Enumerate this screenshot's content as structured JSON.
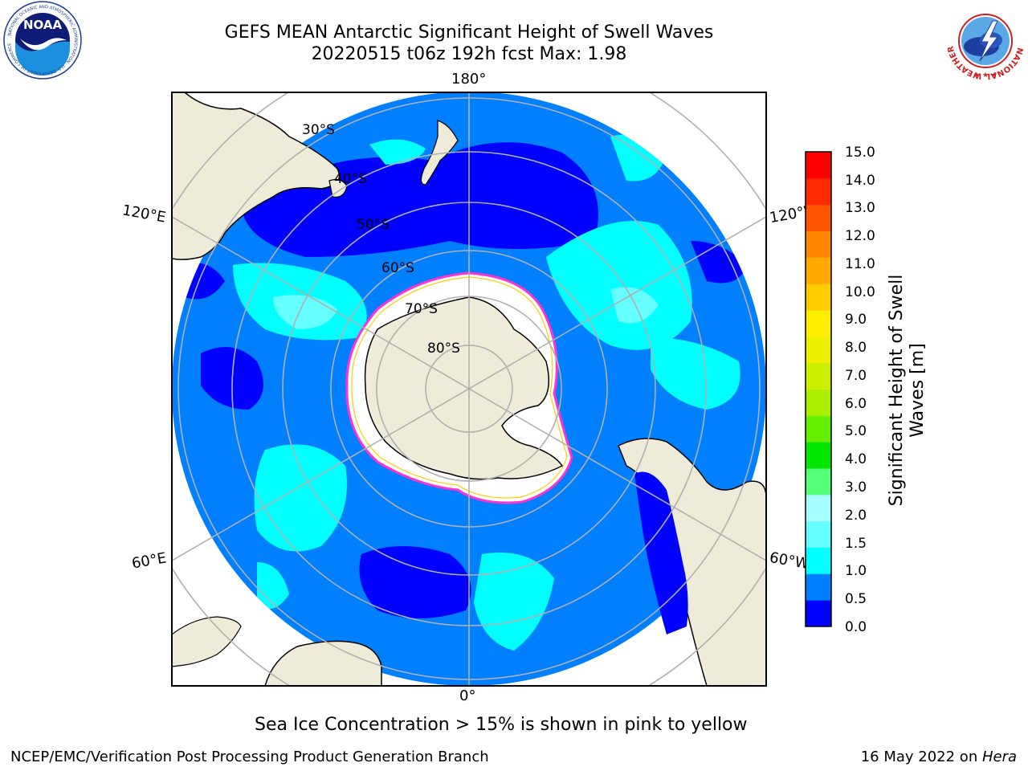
{
  "header": {
    "title_line1": "GEFS MEAN Antarctic Significant Height of Swell Waves",
    "title_line2": "20220515 t06z 192h fcst   Max: 1.98"
  },
  "logos": {
    "noaa_text": "NOAA",
    "noaa_ring_text": "NATIONAL OCEANIC AND ATMOSPHERIC ADMINISTRATION · U.S. DEPARTMENT OF COMMERCE",
    "nws_ring_text": "NATIONAL WEATHER SERVICE"
  },
  "map": {
    "projection": "south polar stereographic",
    "lon_labels": {
      "top": "180°",
      "bottom": "0°",
      "left_upper": "120°E",
      "left_lower": "60°E",
      "right_upper": "120°W",
      "right_lower": "60°W"
    },
    "lat_labels": [
      "30°S",
      "40°S",
      "50°S",
      "60°S",
      "70°S",
      "80°S"
    ],
    "colors": {
      "land": "#eeecd9",
      "ice_fill": "#ffffff",
      "ice_edge": "#ff33cc",
      "ice_edge_inner": "#ffcc00",
      "grid": "#b0b0b0"
    }
  },
  "colorbar": {
    "label": "Significant Height of Swell Waves [m]",
    "ticks": [
      "15.0",
      "14.0",
      "13.0",
      "12.0",
      "11.0",
      "10.0",
      "9.0",
      "8.0",
      "7.0",
      "6.0",
      "5.0",
      "4.0",
      "3.0",
      "2.0",
      "1.5",
      "1.0",
      "0.5",
      "0.0"
    ],
    "colors_bottom_to_top": [
      "#0000ff",
      "#0080ff",
      "#00ffff",
      "#66ffff",
      "#a8ffff",
      "#55ff77",
      "#00e600",
      "#66ee00",
      "#aaee00",
      "#ccee00",
      "#eeee00",
      "#ffee00",
      "#ffcc00",
      "#ffaa00",
      "#ff8800",
      "#ff5500",
      "#ff2a00",
      "#ff0000"
    ]
  },
  "note": "Sea Ice Concentration > 15% is shown in pink to yellow",
  "footer": {
    "left": "NCEP/EMC/Verification Post Processing Product Generation Branch",
    "right_date": "16 May 2022 on ",
    "right_host": "Hera"
  }
}
